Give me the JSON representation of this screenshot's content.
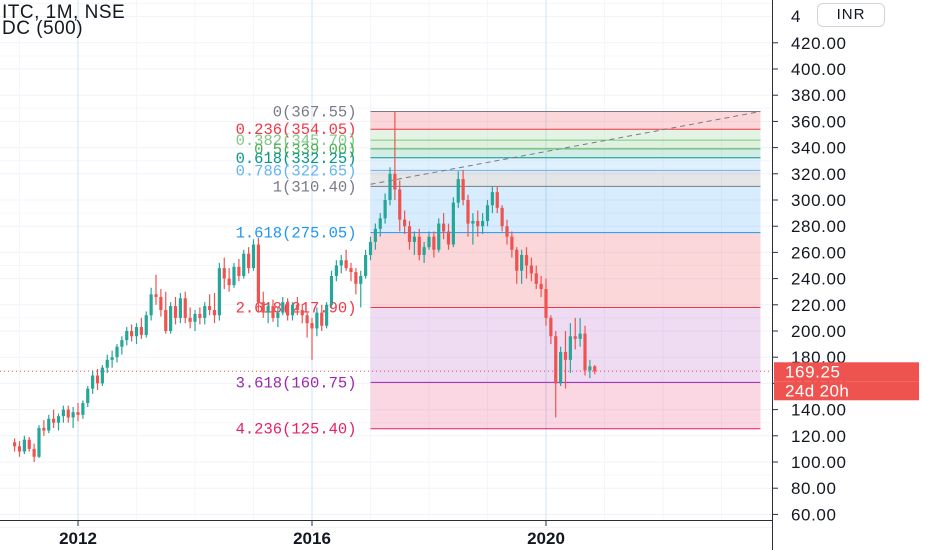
{
  "header": {
    "symbol_line": "ITC, 1M, NSE",
    "indicator_line": "DC (500)"
  },
  "currency_label": "INR",
  "price_axis": {
    "partial_top_label": "4",
    "labels": [
      "420.00",
      "400.00",
      "380.00",
      "360.00",
      "340.00",
      "320.00",
      "300.00",
      "280.00",
      "260.00",
      "240.00",
      "220.00",
      "200.00",
      "180.00",
      "160.00",
      "140.00",
      "120.00",
      "100.00",
      "80.00",
      "60.00"
    ]
  },
  "last_price": {
    "label": "169.25",
    "value": 169.25,
    "color": "#ef5350"
  },
  "countdown": "24d 20h",
  "time_axis": {
    "labels": [
      "2012",
      "2016",
      "2020"
    ]
  },
  "chart_data": {
    "type": "candlestick",
    "symbol": "ITC",
    "interval": "1M",
    "exchange": "NSE",
    "ylim": [
      57,
      432
    ],
    "grid": true,
    "colors": {
      "up": "#26a69a",
      "down": "#ef5350"
    },
    "x_ticks": [
      "2012",
      "2016",
      "2020"
    ],
    "candles": [
      {
        "t": "2010-12",
        "o": 115,
        "h": 118,
        "l": 108,
        "c": 112
      },
      {
        "t": "2011-01",
        "o": 112,
        "h": 116,
        "l": 104,
        "c": 108
      },
      {
        "t": "2011-02",
        "o": 108,
        "h": 120,
        "l": 106,
        "c": 117
      },
      {
        "t": "2011-03",
        "o": 117,
        "h": 119,
        "l": 108,
        "c": 110
      },
      {
        "t": "2011-04",
        "o": 110,
        "h": 114,
        "l": 100,
        "c": 104
      },
      {
        "t": "2011-05",
        "o": 104,
        "h": 128,
        "l": 103,
        "c": 126
      },
      {
        "t": "2011-06",
        "o": 126,
        "h": 132,
        "l": 120,
        "c": 124
      },
      {
        "t": "2011-07",
        "o": 124,
        "h": 136,
        "l": 122,
        "c": 133
      },
      {
        "t": "2011-08",
        "o": 133,
        "h": 140,
        "l": 126,
        "c": 130
      },
      {
        "t": "2011-09",
        "o": 130,
        "h": 137,
        "l": 124,
        "c": 135
      },
      {
        "t": "2011-10",
        "o": 135,
        "h": 143,
        "l": 130,
        "c": 140
      },
      {
        "t": "2011-11",
        "o": 140,
        "h": 143,
        "l": 130,
        "c": 134
      },
      {
        "t": "2011-12",
        "o": 134,
        "h": 142,
        "l": 126,
        "c": 138
      },
      {
        "t": "2012-01",
        "o": 138,
        "h": 145,
        "l": 131,
        "c": 136
      },
      {
        "t": "2012-02",
        "o": 136,
        "h": 147,
        "l": 133,
        "c": 145
      },
      {
        "t": "2012-03",
        "o": 145,
        "h": 158,
        "l": 142,
        "c": 156
      },
      {
        "t": "2012-04",
        "o": 156,
        "h": 170,
        "l": 152,
        "c": 166
      },
      {
        "t": "2012-05",
        "o": 166,
        "h": 171,
        "l": 155,
        "c": 160
      },
      {
        "t": "2012-06",
        "o": 160,
        "h": 174,
        "l": 158,
        "c": 172
      },
      {
        "t": "2012-07",
        "o": 172,
        "h": 182,
        "l": 168,
        "c": 178
      },
      {
        "t": "2012-08",
        "o": 178,
        "h": 185,
        "l": 172,
        "c": 180
      },
      {
        "t": "2012-09",
        "o": 180,
        "h": 190,
        "l": 176,
        "c": 188
      },
      {
        "t": "2012-10",
        "o": 188,
        "h": 196,
        "l": 182,
        "c": 193
      },
      {
        "t": "2012-11",
        "o": 193,
        "h": 203,
        "l": 189,
        "c": 200
      },
      {
        "t": "2012-12",
        "o": 200,
        "h": 205,
        "l": 192,
        "c": 196
      },
      {
        "t": "2013-01",
        "o": 196,
        "h": 206,
        "l": 190,
        "c": 203
      },
      {
        "t": "2013-02",
        "o": 203,
        "h": 210,
        "l": 194,
        "c": 197
      },
      {
        "t": "2013-03",
        "o": 197,
        "h": 215,
        "l": 195,
        "c": 212
      },
      {
        "t": "2013-04",
        "o": 212,
        "h": 233,
        "l": 208,
        "c": 228
      },
      {
        "t": "2013-05",
        "o": 228,
        "h": 243,
        "l": 220,
        "c": 226
      },
      {
        "t": "2013-06",
        "o": 226,
        "h": 232,
        "l": 211,
        "c": 216
      },
      {
        "t": "2013-07",
        "o": 216,
        "h": 230,
        "l": 198,
        "c": 200
      },
      {
        "t": "2013-08",
        "o": 200,
        "h": 222,
        "l": 198,
        "c": 219
      },
      {
        "t": "2013-09",
        "o": 219,
        "h": 226,
        "l": 205,
        "c": 210
      },
      {
        "t": "2013-10",
        "o": 210,
        "h": 229,
        "l": 206,
        "c": 225
      },
      {
        "t": "2013-11",
        "o": 225,
        "h": 230,
        "l": 206,
        "c": 210
      },
      {
        "t": "2013-12",
        "o": 210,
        "h": 218,
        "l": 202,
        "c": 207
      },
      {
        "t": "2014-01",
        "o": 207,
        "h": 216,
        "l": 200,
        "c": 213
      },
      {
        "t": "2014-02",
        "o": 213,
        "h": 218,
        "l": 205,
        "c": 210
      },
      {
        "t": "2014-03",
        "o": 210,
        "h": 222,
        "l": 205,
        "c": 219
      },
      {
        "t": "2014-04",
        "o": 219,
        "h": 228,
        "l": 212,
        "c": 216
      },
      {
        "t": "2014-05",
        "o": 216,
        "h": 229,
        "l": 206,
        "c": 212
      },
      {
        "t": "2014-06",
        "o": 212,
        "h": 252,
        "l": 208,
        "c": 248
      },
      {
        "t": "2014-07",
        "o": 248,
        "h": 256,
        "l": 232,
        "c": 240
      },
      {
        "t": "2014-08",
        "o": 240,
        "h": 248,
        "l": 230,
        "c": 235
      },
      {
        "t": "2014-09",
        "o": 235,
        "h": 252,
        "l": 233,
        "c": 249
      },
      {
        "t": "2014-10",
        "o": 249,
        "h": 255,
        "l": 238,
        "c": 242
      },
      {
        "t": "2014-11",
        "o": 242,
        "h": 262,
        "l": 240,
        "c": 259
      },
      {
        "t": "2014-12",
        "o": 259,
        "h": 264,
        "l": 244,
        "c": 248
      },
      {
        "t": "2015-01",
        "o": 248,
        "h": 270,
        "l": 246,
        "c": 266
      },
      {
        "t": "2015-02",
        "o": 266,
        "h": 271,
        "l": 214,
        "c": 222
      },
      {
        "t": "2015-03",
        "o": 222,
        "h": 230,
        "l": 210,
        "c": 214
      },
      {
        "t": "2015-04",
        "o": 214,
        "h": 222,
        "l": 206,
        "c": 219
      },
      {
        "t": "2015-05",
        "o": 219,
        "h": 224,
        "l": 207,
        "c": 210
      },
      {
        "t": "2015-06",
        "o": 210,
        "h": 218,
        "l": 203,
        "c": 214
      },
      {
        "t": "2015-07",
        "o": 214,
        "h": 226,
        "l": 212,
        "c": 222
      },
      {
        "t": "2015-08",
        "o": 222,
        "h": 225,
        "l": 208,
        "c": 212
      },
      {
        "t": "2015-09",
        "o": 212,
        "h": 222,
        "l": 208,
        "c": 220
      },
      {
        "t": "2015-10",
        "o": 220,
        "h": 226,
        "l": 212,
        "c": 216
      },
      {
        "t": "2015-11",
        "o": 216,
        "h": 220,
        "l": 206,
        "c": 212
      },
      {
        "t": "2015-12",
        "o": 212,
        "h": 214,
        "l": 195,
        "c": 206
      },
      {
        "t": "2016-01",
        "o": 206,
        "h": 210,
        "l": 178,
        "c": 202
      },
      {
        "t": "2016-02",
        "o": 202,
        "h": 218,
        "l": 196,
        "c": 214
      },
      {
        "t": "2016-03",
        "o": 214,
        "h": 220,
        "l": 200,
        "c": 204
      },
      {
        "t": "2016-04",
        "o": 204,
        "h": 222,
        "l": 202,
        "c": 220
      },
      {
        "t": "2016-05",
        "o": 220,
        "h": 246,
        "l": 218,
        "c": 242
      },
      {
        "t": "2016-06",
        "o": 242,
        "h": 254,
        "l": 238,
        "c": 250
      },
      {
        "t": "2016-07",
        "o": 250,
        "h": 258,
        "l": 244,
        "c": 254
      },
      {
        "t": "2016-08",
        "o": 254,
        "h": 262,
        "l": 246,
        "c": 248
      },
      {
        "t": "2016-09",
        "o": 248,
        "h": 252,
        "l": 238,
        "c": 245
      },
      {
        "t": "2016-10",
        "o": 245,
        "h": 248,
        "l": 228,
        "c": 236
      },
      {
        "t": "2016-11",
        "o": 236,
        "h": 246,
        "l": 218,
        "c": 242
      },
      {
        "t": "2016-12",
        "o": 242,
        "h": 262,
        "l": 240,
        "c": 258
      },
      {
        "t": "2017-01",
        "o": 258,
        "h": 272,
        "l": 254,
        "c": 268
      },
      {
        "t": "2017-02",
        "o": 268,
        "h": 282,
        "l": 262,
        "c": 278
      },
      {
        "t": "2017-03",
        "o": 278,
        "h": 290,
        "l": 272,
        "c": 286
      },
      {
        "t": "2017-04",
        "o": 286,
        "h": 305,
        "l": 282,
        "c": 300
      },
      {
        "t": "2017-05",
        "o": 300,
        "h": 325,
        "l": 296,
        "c": 320
      },
      {
        "t": "2017-06",
        "o": 320,
        "h": 368,
        "l": 300,
        "c": 308
      },
      {
        "t": "2017-07",
        "o": 308,
        "h": 315,
        "l": 276,
        "c": 285
      },
      {
        "t": "2017-08",
        "o": 285,
        "h": 292,
        "l": 274,
        "c": 280
      },
      {
        "t": "2017-09",
        "o": 280,
        "h": 284,
        "l": 262,
        "c": 268
      },
      {
        "t": "2017-10",
        "o": 268,
        "h": 276,
        "l": 258,
        "c": 272
      },
      {
        "t": "2017-11",
        "o": 272,
        "h": 278,
        "l": 254,
        "c": 258
      },
      {
        "t": "2017-12",
        "o": 258,
        "h": 268,
        "l": 252,
        "c": 264
      },
      {
        "t": "2018-01",
        "o": 264,
        "h": 276,
        "l": 262,
        "c": 272
      },
      {
        "t": "2018-02",
        "o": 272,
        "h": 276,
        "l": 256,
        "c": 262
      },
      {
        "t": "2018-03",
        "o": 262,
        "h": 286,
        "l": 260,
        "c": 282
      },
      {
        "t": "2018-04",
        "o": 282,
        "h": 290,
        "l": 270,
        "c": 276
      },
      {
        "t": "2018-05",
        "o": 276,
        "h": 282,
        "l": 262,
        "c": 266
      },
      {
        "t": "2018-06",
        "o": 266,
        "h": 302,
        "l": 264,
        "c": 298
      },
      {
        "t": "2018-07",
        "o": 298,
        "h": 322,
        "l": 294,
        "c": 316
      },
      {
        "t": "2018-08",
        "o": 316,
        "h": 323,
        "l": 296,
        "c": 300
      },
      {
        "t": "2018-09",
        "o": 300,
        "h": 304,
        "l": 272,
        "c": 282
      },
      {
        "t": "2018-10",
        "o": 282,
        "h": 290,
        "l": 266,
        "c": 284
      },
      {
        "t": "2018-11",
        "o": 284,
        "h": 292,
        "l": 272,
        "c": 280
      },
      {
        "t": "2018-12",
        "o": 280,
        "h": 290,
        "l": 274,
        "c": 284
      },
      {
        "t": "2019-01",
        "o": 284,
        "h": 300,
        "l": 280,
        "c": 296
      },
      {
        "t": "2019-02",
        "o": 296,
        "h": 310,
        "l": 290,
        "c": 306
      },
      {
        "t": "2019-03",
        "o": 306,
        "h": 310,
        "l": 290,
        "c": 294
      },
      {
        "t": "2019-04",
        "o": 294,
        "h": 296,
        "l": 276,
        "c": 280
      },
      {
        "t": "2019-05",
        "o": 280,
        "h": 285,
        "l": 266,
        "c": 272
      },
      {
        "t": "2019-06",
        "o": 272,
        "h": 276,
        "l": 256,
        "c": 262
      },
      {
        "t": "2019-07",
        "o": 262,
        "h": 264,
        "l": 236,
        "c": 246
      },
      {
        "t": "2019-08",
        "o": 246,
        "h": 262,
        "l": 236,
        "c": 258
      },
      {
        "t": "2019-09",
        "o": 258,
        "h": 264,
        "l": 240,
        "c": 250
      },
      {
        "t": "2019-10",
        "o": 250,
        "h": 256,
        "l": 238,
        "c": 244
      },
      {
        "t": "2019-11",
        "o": 244,
        "h": 250,
        "l": 232,
        "c": 236
      },
      {
        "t": "2019-12",
        "o": 236,
        "h": 242,
        "l": 226,
        "c": 232
      },
      {
        "t": "2020-01",
        "o": 232,
        "h": 240,
        "l": 204,
        "c": 210
      },
      {
        "t": "2020-02",
        "o": 210,
        "h": 212,
        "l": 190,
        "c": 196
      },
      {
        "t": "2020-03",
        "o": 196,
        "h": 200,
        "l": 134,
        "c": 160
      },
      {
        "t": "2020-04",
        "o": 160,
        "h": 188,
        "l": 158,
        "c": 184
      },
      {
        "t": "2020-05",
        "o": 184,
        "h": 200,
        "l": 156,
        "c": 178
      },
      {
        "t": "2020-06",
        "o": 178,
        "h": 206,
        "l": 168,
        "c": 196
      },
      {
        "t": "2020-07",
        "o": 196,
        "h": 210,
        "l": 186,
        "c": 194
      },
      {
        "t": "2020-08",
        "o": 194,
        "h": 210,
        "l": 188,
        "c": 198
      },
      {
        "t": "2020-09",
        "o": 198,
        "h": 204,
        "l": 166,
        "c": 170
      },
      {
        "t": "2020-10",
        "o": 170,
        "h": 178,
        "l": 164,
        "c": 173
      },
      {
        "t": "2020-11",
        "o": 173,
        "h": 174,
        "l": 167,
        "c": 169.25
      }
    ],
    "fib_extension": {
      "levels": [
        {
          "ratio": "0",
          "value": 367.55,
          "label": "0(367.55)",
          "color": "#787b86",
          "fill": "rgba(242,54,69,0.20)"
        },
        {
          "ratio": "0.236",
          "value": 354.05,
          "label": "0.236(354.05)",
          "color": "#f23645",
          "fill": "rgba(129,199,132,0.22)"
        },
        {
          "ratio": "0.382",
          "value": 345.7,
          "label": "0.382(345.70)",
          "color": "#81c784",
          "fill": "rgba(76,175,80,0.18)"
        },
        {
          "ratio": "0.5",
          "value": 339.0,
          "label": "0.5(339.00)",
          "color": "#4caf50",
          "fill": "rgba(8,153,129,0.18)"
        },
        {
          "ratio": "0.618",
          "value": 332.25,
          "label": "0.618(332.25)",
          "color": "#089981",
          "fill": "rgba(100,181,246,0.20)"
        },
        {
          "ratio": "0.786",
          "value": 322.65,
          "label": "0.786(322.65)",
          "color": "#64b5f6",
          "fill": "rgba(120,123,134,0.20)"
        },
        {
          "ratio": "1",
          "value": 310.4,
          "label": "1(310.40)",
          "color": "#787b86",
          "fill": "rgba(33,150,243,0.18)"
        },
        {
          "ratio": "1.618",
          "value": 275.05,
          "label": "1.618(275.05)",
          "color": "#2196f3",
          "fill": "rgba(242,54,69,0.20)"
        },
        {
          "ratio": "2.618",
          "value": 217.9,
          "label": "2.618(217.90)",
          "color": "#f23645",
          "fill": "rgba(156,39,176,0.16)"
        },
        {
          "ratio": "3.618",
          "value": 160.75,
          "label": "3.618(160.75)",
          "color": "#9c27b0",
          "fill": "rgba(233,30,99,0.18)"
        },
        {
          "ratio": "4.236",
          "value": 125.4,
          "label": "4.236(125.40)",
          "color": "#e91e63",
          "fill": null
        }
      ],
      "start": "2017-01",
      "end": "2023-09",
      "trend_line": {
        "from": {
          "t": "2017-01",
          "v": 312
        },
        "to": {
          "t": "2023-09",
          "v": 367.55
        }
      }
    }
  }
}
